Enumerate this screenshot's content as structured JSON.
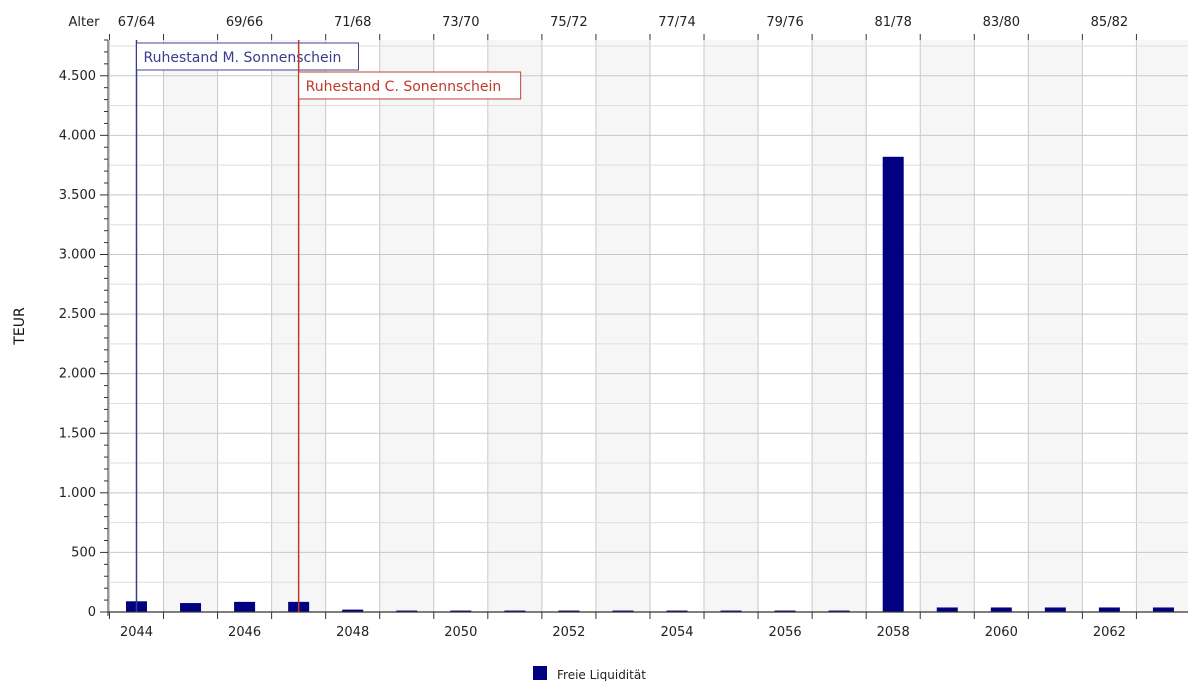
{
  "chart_data": {
    "type": "bar",
    "ylabel": "TEUR",
    "ylim": [
      0,
      4800
    ],
    "yticks": [
      0,
      500,
      1000,
      1500,
      2000,
      2500,
      3000,
      3500,
      4000,
      4500
    ],
    "ytick_labels": [
      "0",
      "500",
      "1.000",
      "1.500",
      "2.000",
      "2.500",
      "3.000",
      "3.500",
      "4.000",
      "4.500"
    ],
    "categories": [
      2044,
      2045,
      2046,
      2047,
      2048,
      2049,
      2050,
      2051,
      2052,
      2053,
      2054,
      2055,
      2056,
      2057,
      2058,
      2059,
      2060,
      2061,
      2062,
      2063
    ],
    "xtick_labels": [
      "2044",
      "2046",
      "2048",
      "2050",
      "2052",
      "2054",
      "2056",
      "2058",
      "2060",
      "2062"
    ],
    "series": [
      {
        "name": "Freie Liquidität",
        "color": "#000080",
        "values": [
          90,
          75,
          85,
          85,
          20,
          12,
          12,
          12,
          12,
          12,
          12,
          12,
          12,
          12,
          3820,
          38,
          38,
          38,
          38,
          38
        ]
      }
    ],
    "age_axis": {
      "title": "Alter",
      "labels": [
        "67/64",
        "69/66",
        "71/68",
        "73/70",
        "75/72",
        "77/74",
        "79/76",
        "81/78",
        "83/80",
        "85/82"
      ]
    },
    "annotations": [
      {
        "year": 2044,
        "label": "Ruhestand M. Sonnenschein",
        "color": "#3b3b8f"
      },
      {
        "year": 2047,
        "label": "Ruhestand C. Sonennschein",
        "color": "#c0392b"
      }
    ],
    "legend_position": "bottom-center",
    "grid": true
  }
}
